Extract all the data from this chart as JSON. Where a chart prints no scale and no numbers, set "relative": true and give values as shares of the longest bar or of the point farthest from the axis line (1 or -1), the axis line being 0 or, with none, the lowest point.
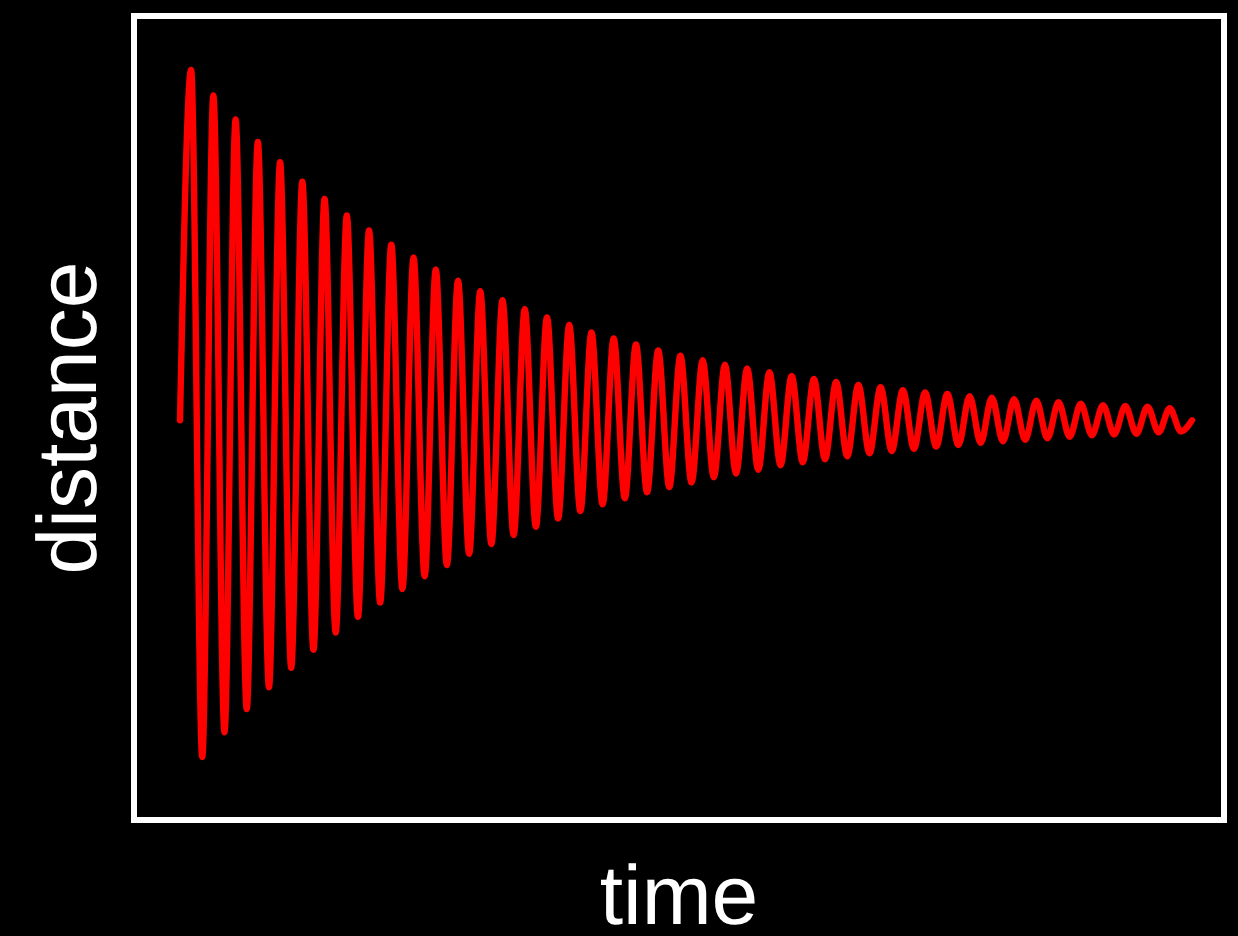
{
  "chart_data": {
    "type": "line",
    "xlabel": "time",
    "ylabel": "distance",
    "relative": true,
    "categories": [
      null,
      null,
      null,
      null,
      null,
      null,
      null,
      null,
      null,
      null,
      null,
      null,
      null,
      null,
      null,
      null,
      null,
      null,
      null,
      null,
      null,
      null,
      null,
      null,
      null,
      null,
      null,
      null,
      null,
      null,
      null,
      null,
      null,
      null,
      null,
      null,
      null,
      null,
      null,
      null,
      null,
      null,
      null,
      null,
      null,
      null,
      null,
      null,
      null,
      null,
      null,
      null,
      null,
      null,
      null,
      null,
      null,
      null,
      null,
      null,
      null,
      null,
      null,
      null,
      null,
      null,
      null,
      null,
      null,
      null,
      null,
      null,
      null,
      null,
      null,
      null,
      null,
      null,
      null,
      null,
      null,
      null,
      null,
      null,
      null,
      null,
      null,
      null,
      null,
      null,
      null,
      null
    ],
    "series": [
      {
        "color": "#ff0000",
        "values": [
          0.533,
          1.0,
          0.084,
          0.966,
          0.117,
          0.934,
          0.148,
          0.904,
          0.177,
          0.877,
          0.203,
          0.851,
          0.227,
          0.828,
          0.25,
          0.806,
          0.271,
          0.786,
          0.29,
          0.767,
          0.308,
          0.75,
          0.325,
          0.734,
          0.34,
          0.719,
          0.355,
          0.705,
          0.368,
          0.693,
          0.38,
          0.681,
          0.391,
          0.67,
          0.402,
          0.66,
          0.412,
          0.65,
          0.421,
          0.642,
          0.429,
          0.634,
          0.437,
          0.626,
          0.444,
          0.619,
          0.45,
          0.613,
          0.457,
          0.607,
          0.462,
          0.602,
          0.467,
          0.597,
          0.473,
          0.592,
          0.477,
          0.588,
          0.481,
          0.584,
          0.485,
          0.58,
          0.489,
          0.577,
          0.492,
          0.573,
          0.495,
          0.57,
          0.498,
          0.568,
          0.5,
          0.565,
          0.503,
          0.563,
          0.505,
          0.561,
          0.507,
          0.559,
          0.509,
          0.557,
          0.511,
          0.555,
          0.513,
          0.553,
          0.514,
          0.552,
          0.515,
          0.551,
          0.517,
          0.549,
          0.518,
          0.533
        ]
      }
    ]
  }
}
